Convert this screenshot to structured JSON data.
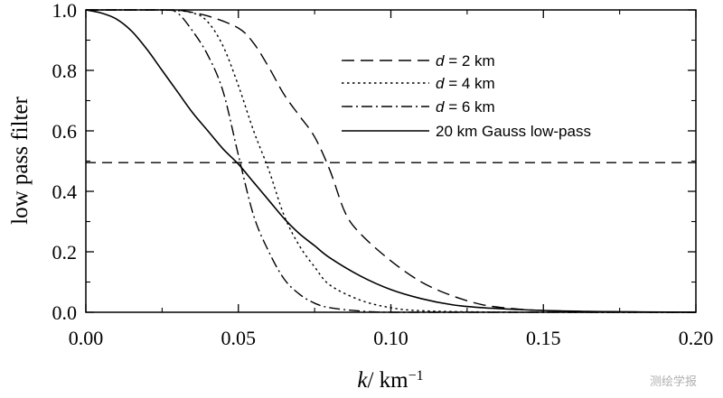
{
  "chart_data": {
    "type": "line",
    "title": "",
    "xlabel": {
      "italic": "k",
      "rest": "/ km",
      "sup": "−1"
    },
    "ylabel": "low pass filter",
    "xlim": [
      0,
      0.2
    ],
    "ylim": [
      0,
      1
    ],
    "x_ticks": [
      0.0,
      0.05,
      0.1,
      0.15,
      0.2
    ],
    "x_tick_labels": [
      "0.00",
      "0.05",
      "0.10",
      "0.15",
      "0.20"
    ],
    "y_ticks": [
      0.0,
      0.2,
      0.4,
      0.6,
      0.8,
      1.0
    ],
    "y_tick_labels": [
      "0.0",
      "0.2",
      "0.4",
      "0.6",
      "0.8",
      "1.0"
    ],
    "grid": false,
    "legend_position": "top-right",
    "reference_line": {
      "y": 0.495,
      "style": "dashed"
    },
    "series": [
      {
        "name_italic": "d",
        "name_rest": " = 2 km",
        "style": "dashed",
        "x": [
          0.0,
          0.025,
          0.03,
          0.04,
          0.05,
          0.055,
          0.06,
          0.065,
          0.07,
          0.075,
          0.08,
          0.085,
          0.09,
          0.1,
          0.11,
          0.12,
          0.13,
          0.14,
          0.15,
          0.17,
          0.2
        ],
        "y": [
          1.0,
          1.0,
          1.0,
          0.98,
          0.94,
          0.89,
          0.81,
          0.72,
          0.65,
          0.58,
          0.47,
          0.33,
          0.26,
          0.17,
          0.1,
          0.055,
          0.025,
          0.012,
          0.006,
          0.002,
          0.0
        ]
      },
      {
        "name_italic": "d",
        "name_rest": " = 4 km",
        "style": "dotted",
        "x": [
          0.0,
          0.025,
          0.035,
          0.04,
          0.045,
          0.05,
          0.055,
          0.06,
          0.065,
          0.07,
          0.075,
          0.08,
          0.09,
          0.1,
          0.11,
          0.13,
          0.16,
          0.2
        ],
        "y": [
          1.0,
          1.0,
          0.99,
          0.96,
          0.88,
          0.75,
          0.6,
          0.47,
          0.32,
          0.22,
          0.15,
          0.09,
          0.04,
          0.015,
          0.005,
          0.001,
          0.0,
          0.0
        ]
      },
      {
        "name_italic": "d",
        "name_rest": " = 6 km",
        "style": "dashdot",
        "x": [
          0.0,
          0.025,
          0.03,
          0.035,
          0.04,
          0.045,
          0.05,
          0.055,
          0.06,
          0.065,
          0.07,
          0.075,
          0.08,
          0.09,
          0.1,
          0.12,
          0.2
        ],
        "y": [
          1.0,
          1.0,
          0.99,
          0.93,
          0.85,
          0.73,
          0.52,
          0.32,
          0.2,
          0.11,
          0.06,
          0.03,
          0.015,
          0.004,
          0.0,
          0.0,
          0.0
        ]
      },
      {
        "name": "20 km Gauss low-pass",
        "style": "solid",
        "x": [
          0.0,
          0.005,
          0.01,
          0.015,
          0.02,
          0.025,
          0.03,
          0.035,
          0.04,
          0.045,
          0.05,
          0.055,
          0.06,
          0.065,
          0.07,
          0.075,
          0.08,
          0.09,
          0.1,
          0.11,
          0.12,
          0.13,
          0.14,
          0.15,
          0.17,
          0.2
        ],
        "y": [
          1.0,
          0.99,
          0.97,
          0.93,
          0.87,
          0.8,
          0.73,
          0.66,
          0.6,
          0.54,
          0.49,
          0.43,
          0.37,
          0.31,
          0.26,
          0.22,
          0.18,
          0.12,
          0.075,
          0.045,
          0.025,
          0.015,
          0.01,
          0.006,
          0.002,
          0.0
        ]
      }
    ]
  },
  "watermark": "测绘学报"
}
